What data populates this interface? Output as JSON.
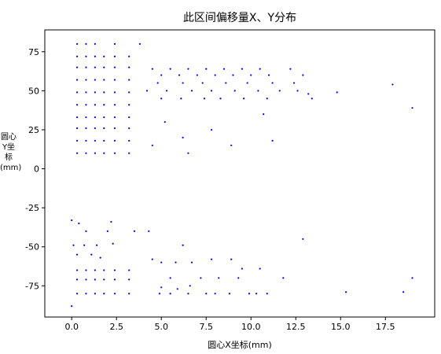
{
  "chart_data": {
    "type": "scatter",
    "title": "此区间偏移量X、Y分布",
    "x_label": "圆心X坐标(mm)",
    "y_label": "圆心Y坐标(mm)",
    "color": "#0000ff",
    "xlim": [
      -1.5,
      20.25
    ],
    "ylim": [
      -95,
      89
    ],
    "xticks": [
      {
        "value": 0,
        "label": "0.0"
      },
      2.5,
      {
        "value": 5,
        "label": "5.0"
      },
      7.5,
      {
        "value": 10,
        "label": "10.0"
      },
      12.5,
      {
        "value": 15,
        "label": "15.0"
      },
      17.5
    ],
    "yticks": [
      75,
      50,
      25,
      0,
      -25,
      -50,
      -75
    ],
    "x": [
      0.3,
      0.8,
      1.3,
      2.4,
      3.8,
      0.3,
      0.8,
      1.3,
      1.8,
      2.4,
      3.2,
      0.3,
      0.8,
      1.3,
      1.8,
      2.4,
      3.2,
      0.3,
      0.8,
      1.3,
      1.8,
      2.4,
      3.2,
      0.3,
      0.8,
      1.3,
      1.8,
      2.4,
      3.2,
      0.3,
      0.8,
      1.3,
      1.8,
      2.4,
      3.2,
      0.3,
      0.8,
      1.3,
      1.8,
      2.4,
      3.2,
      0.3,
      0.8,
      1.3,
      1.8,
      2.4,
      3.2,
      0.3,
      0.8,
      1.3,
      1.8,
      2.4,
      3.2,
      0.3,
      0.8,
      1.3,
      1.8,
      2.4,
      3.2,
      4.5,
      5.5,
      6.5,
      7.5,
      8.5,
      9.5,
      10.5,
      12.2,
      5.0,
      6.0,
      7.0,
      8.0,
      9.0,
      10.0,
      11.0,
      12.9,
      4.8,
      6.2,
      7.3,
      8.6,
      9.8,
      11.2,
      12.4,
      4.2,
      5.3,
      6.7,
      7.8,
      9.1,
      10.4,
      11.6,
      12.6,
      5.0,
      6.1,
      7.4,
      8.3,
      9.6,
      10.9,
      13.4,
      14.8,
      17.9,
      19.0,
      13.2,
      10.7,
      5.2,
      6.2,
      7.8,
      8.9,
      11.2,
      6.5,
      4.5,
      0.3,
      0.8,
      1.3,
      1.8,
      2.4,
      3.2,
      0.3,
      0.8,
      1.3,
      1.8,
      2.4,
      3.2,
      0.3,
      0.8,
      1.3,
      1.8,
      2.4,
      3.2,
      0.0,
      2.2,
      0.4,
      0.8,
      2.0,
      3.5,
      4.3,
      0.1,
      0.7,
      1.4,
      2.3,
      1.1,
      1.6,
      0.3,
      0.0,
      12.9,
      6.2,
      4.5,
      5.0,
      5.8,
      6.7,
      7.8,
      8.9,
      9.5,
      10.5,
      11.8,
      5.5,
      7.2,
      8.2,
      9.3,
      5.0,
      5.9,
      6.6,
      4.9,
      5.5,
      6.5,
      7.5,
      8.0,
      8.8,
      9.9,
      10.3,
      10.9,
      15.3,
      18.5,
      19.0
    ],
    "values": [
      80,
      80,
      80,
      80,
      80,
      72,
      72,
      72,
      72,
      72,
      72,
      65,
      65,
      65,
      65,
      65,
      65,
      57,
      57,
      57,
      57,
      57,
      57,
      49,
      49,
      49,
      49,
      49,
      49,
      41,
      41,
      41,
      41,
      41,
      41,
      33,
      33,
      33,
      33,
      33,
      33,
      26,
      26,
      26,
      26,
      26,
      26,
      18,
      18,
      18,
      18,
      18,
      18,
      10,
      10,
      10,
      10,
      10,
      10,
      64,
      64,
      64,
      64,
      64,
      64,
      64,
      64,
      60,
      60,
      60,
      60,
      60,
      60,
      60,
      60,
      55,
      55,
      55,
      55,
      55,
      55,
      55,
      50,
      50,
      50,
      50,
      50,
      50,
      50,
      50,
      45,
      45,
      45,
      45,
      45,
      45,
      45,
      49,
      54,
      39,
      48,
      35,
      30,
      20,
      25,
      15,
      18,
      10,
      15,
      -65,
      -65,
      -65,
      -65,
      -65,
      -65,
      -71,
      -71,
      -71,
      -71,
      -71,
      -71,
      -80,
      -80,
      -80,
      -80,
      -80,
      -80,
      -33,
      -34,
      -35,
      -40,
      -40,
      -40,
      -40,
      -49,
      -49,
      -49,
      -48,
      -55,
      -57,
      -55,
      -88,
      -45,
      -49,
      -58,
      -60,
      -60,
      -60,
      -58,
      -58,
      -64,
      -64,
      -70,
      -70,
      -70,
      -70,
      -70,
      -76,
      -77,
      -75,
      -80,
      -80,
      -80,
      -80,
      -80,
      -80,
      -80,
      -80,
      -80,
      -79,
      -79,
      -70
    ]
  }
}
